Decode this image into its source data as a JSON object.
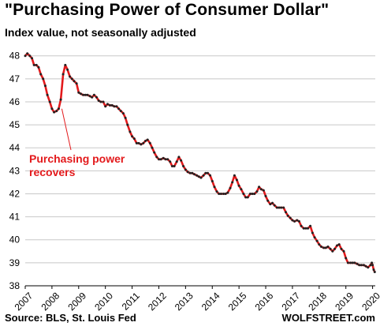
{
  "title": "\"Purchasing  Power  of  Consumer  Dollar\"",
  "subtitle": "Index value, not seasonally adjusted",
  "source": "Source: BLS, St. Louis Fed",
  "brand": "WOLFSTREET.com",
  "colors": {
    "line": "#e31a1c",
    "markers": "#222222",
    "grid": "#c8c8c8",
    "annotation": "#e31a1c"
  },
  "chart_data": {
    "type": "line",
    "title": "\"Purchasing  Power  of  Consumer  Dollar\"",
    "subtitle": "Index value, not seasonally adjusted",
    "xlabel": "",
    "ylabel": "",
    "xlim": [
      2007,
      2020.1
    ],
    "ylim": [
      38,
      48.3
    ],
    "grid": "horizontal",
    "y_ticks": [
      38,
      39,
      40,
      41,
      42,
      43,
      44,
      45,
      46,
      47,
      48
    ],
    "x_ticks": [
      "2007",
      "2008",
      "2009",
      "2010",
      "2011",
      "2012",
      "2013",
      "2014",
      "2015",
      "2016",
      "2017",
      "2018",
      "2019",
      "2020"
    ],
    "annotations": [
      {
        "text": [
          "Purchasing power",
          "recovers"
        ],
        "x": 2008.37,
        "y": 45.7
      }
    ],
    "series": [
      {
        "points": [
          [
            2007.0,
            48.0
          ],
          [
            2007.08,
            48.1
          ],
          [
            2007.17,
            48.0
          ],
          [
            2007.25,
            47.9
          ],
          [
            2007.33,
            47.6
          ],
          [
            2007.42,
            47.6
          ],
          [
            2007.5,
            47.5
          ],
          [
            2007.58,
            47.2
          ],
          [
            2007.67,
            47.0
          ],
          [
            2007.75,
            46.7
          ],
          [
            2007.83,
            46.3
          ],
          [
            2007.92,
            46.0
          ],
          [
            2008.0,
            45.7
          ],
          [
            2008.08,
            45.55
          ],
          [
            2008.17,
            45.6
          ],
          [
            2008.25,
            45.7
          ],
          [
            2008.33,
            46.1
          ],
          [
            2008.42,
            47.2
          ],
          [
            2008.5,
            47.6
          ],
          [
            2008.58,
            47.4
          ],
          [
            2008.67,
            47.1
          ],
          [
            2008.75,
            47.0
          ],
          [
            2008.83,
            46.9
          ],
          [
            2008.92,
            46.8
          ],
          [
            2009.0,
            46.4
          ],
          [
            2009.08,
            46.35
          ],
          [
            2009.17,
            46.3
          ],
          [
            2009.25,
            46.3
          ],
          [
            2009.33,
            46.3
          ],
          [
            2009.42,
            46.25
          ],
          [
            2009.5,
            46.2
          ],
          [
            2009.58,
            46.3
          ],
          [
            2009.67,
            46.2
          ],
          [
            2009.75,
            46.05
          ],
          [
            2009.83,
            46.0
          ],
          [
            2009.92,
            46.0
          ],
          [
            2010.0,
            45.8
          ],
          [
            2010.08,
            45.9
          ],
          [
            2010.17,
            45.85
          ],
          [
            2010.25,
            45.85
          ],
          [
            2010.33,
            45.8
          ],
          [
            2010.42,
            45.8
          ],
          [
            2010.5,
            45.7
          ],
          [
            2010.58,
            45.6
          ],
          [
            2010.67,
            45.5
          ],
          [
            2010.75,
            45.3
          ],
          [
            2010.83,
            45.0
          ],
          [
            2010.92,
            44.7
          ],
          [
            2011.0,
            44.5
          ],
          [
            2011.08,
            44.4
          ],
          [
            2011.17,
            44.2
          ],
          [
            2011.25,
            44.2
          ],
          [
            2011.33,
            44.15
          ],
          [
            2011.42,
            44.2
          ],
          [
            2011.5,
            44.3
          ],
          [
            2011.58,
            44.35
          ],
          [
            2011.67,
            44.2
          ],
          [
            2011.75,
            44.0
          ],
          [
            2011.83,
            43.8
          ],
          [
            2011.92,
            43.6
          ],
          [
            2012.0,
            43.5
          ],
          [
            2012.08,
            43.5
          ],
          [
            2012.17,
            43.55
          ],
          [
            2012.25,
            43.5
          ],
          [
            2012.33,
            43.5
          ],
          [
            2012.42,
            43.4
          ],
          [
            2012.5,
            43.2
          ],
          [
            2012.58,
            43.2
          ],
          [
            2012.67,
            43.4
          ],
          [
            2012.75,
            43.6
          ],
          [
            2012.83,
            43.45
          ],
          [
            2012.92,
            43.2
          ],
          [
            2013.0,
            43.05
          ],
          [
            2013.08,
            42.95
          ],
          [
            2013.17,
            42.9
          ],
          [
            2013.25,
            42.9
          ],
          [
            2013.33,
            42.85
          ],
          [
            2013.42,
            42.8
          ],
          [
            2013.5,
            42.75
          ],
          [
            2013.58,
            42.7
          ],
          [
            2013.67,
            42.8
          ],
          [
            2013.75,
            42.9
          ],
          [
            2013.83,
            42.9
          ],
          [
            2013.92,
            42.8
          ],
          [
            2014.0,
            42.55
          ],
          [
            2014.08,
            42.3
          ],
          [
            2014.17,
            42.1
          ],
          [
            2014.25,
            42.0
          ],
          [
            2014.33,
            42.0
          ],
          [
            2014.42,
            42.0
          ],
          [
            2014.5,
            42.0
          ],
          [
            2014.58,
            42.05
          ],
          [
            2014.67,
            42.25
          ],
          [
            2014.75,
            42.5
          ],
          [
            2014.83,
            42.8
          ],
          [
            2014.92,
            42.6
          ],
          [
            2015.0,
            42.35
          ],
          [
            2015.08,
            42.2
          ],
          [
            2015.17,
            42.0
          ],
          [
            2015.25,
            41.85
          ],
          [
            2015.33,
            41.85
          ],
          [
            2015.42,
            42.0
          ],
          [
            2015.5,
            42.0
          ],
          [
            2015.58,
            42.0
          ],
          [
            2015.67,
            42.1
          ],
          [
            2015.75,
            42.3
          ],
          [
            2015.83,
            42.2
          ],
          [
            2015.92,
            42.15
          ],
          [
            2016.0,
            41.9
          ],
          [
            2016.08,
            41.7
          ],
          [
            2016.17,
            41.55
          ],
          [
            2016.25,
            41.6
          ],
          [
            2016.33,
            41.5
          ],
          [
            2016.42,
            41.4
          ],
          [
            2016.5,
            41.4
          ],
          [
            2016.58,
            41.4
          ],
          [
            2016.67,
            41.4
          ],
          [
            2016.75,
            41.2
          ],
          [
            2016.83,
            41.05
          ],
          [
            2016.92,
            40.95
          ],
          [
            2017.0,
            40.85
          ],
          [
            2017.08,
            40.8
          ],
          [
            2017.17,
            40.85
          ],
          [
            2017.25,
            40.8
          ],
          [
            2017.33,
            40.6
          ],
          [
            2017.42,
            40.5
          ],
          [
            2017.5,
            40.5
          ],
          [
            2017.58,
            40.5
          ],
          [
            2017.67,
            40.6
          ],
          [
            2017.75,
            40.3
          ],
          [
            2017.83,
            40.1
          ],
          [
            2017.92,
            39.95
          ],
          [
            2018.0,
            39.8
          ],
          [
            2018.08,
            39.7
          ],
          [
            2018.17,
            39.65
          ],
          [
            2018.25,
            39.65
          ],
          [
            2018.33,
            39.7
          ],
          [
            2018.42,
            39.6
          ],
          [
            2018.5,
            39.5
          ],
          [
            2018.58,
            39.6
          ],
          [
            2018.67,
            39.75
          ],
          [
            2018.75,
            39.8
          ],
          [
            2018.83,
            39.6
          ],
          [
            2018.92,
            39.5
          ],
          [
            2019.0,
            39.2
          ],
          [
            2019.08,
            39.0
          ],
          [
            2019.17,
            39.0
          ],
          [
            2019.25,
            39.0
          ],
          [
            2019.33,
            39.0
          ],
          [
            2019.42,
            38.95
          ],
          [
            2019.5,
            38.9
          ],
          [
            2019.58,
            38.9
          ],
          [
            2019.67,
            38.9
          ],
          [
            2019.75,
            38.85
          ],
          [
            2019.83,
            38.8
          ],
          [
            2019.92,
            38.9
          ],
          [
            2019.97,
            39.0
          ],
          [
            2020.0,
            38.9
          ],
          [
            2020.04,
            38.7
          ],
          [
            2020.08,
            38.6
          ]
        ]
      }
    ]
  }
}
